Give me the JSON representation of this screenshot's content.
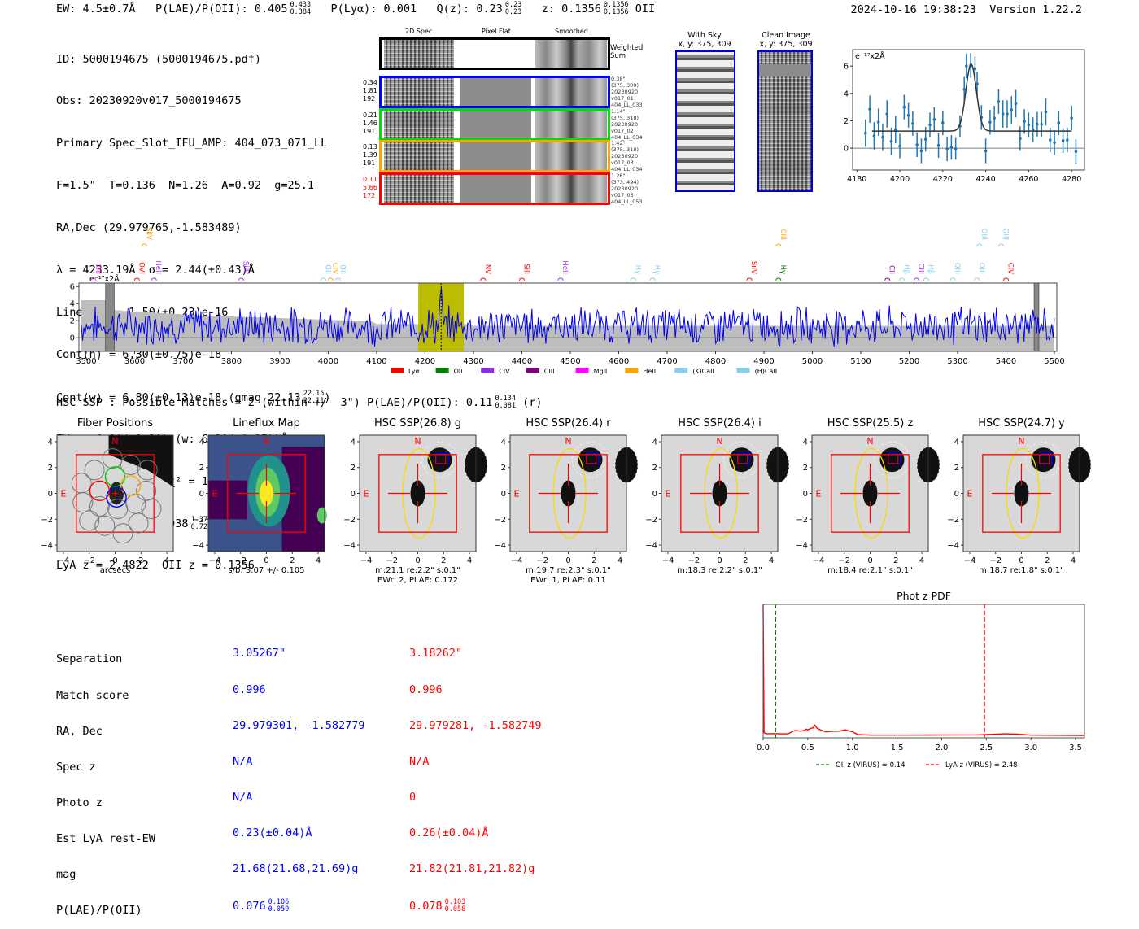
{
  "header": {
    "ew": "EW: 4.5±0.7Å",
    "plae_label": "P(LAE)/P(OII): 0.405",
    "plae_hi": "0.433",
    "plae_lo": "0.384",
    "plya": "P(Lyα): 0.001",
    "qz_label": "Q(z): 0.23",
    "qz_hi": "0.23",
    "qz_lo": "0.23",
    "z_label": "z: 0.1356",
    "z_hi": "0.1356",
    "z_lo": "0.1356",
    "z_line": "OII",
    "timestamp": "2024-10-16 19:38:23",
    "version": "Version 1.22.2"
  },
  "info": {
    "lines": [
      "ID: 5000194675 (5000194675.pdf)",
      "Obs: 20230920v017_5000194675",
      "Primary Spec_Slot_IFU_AMP: 404_073_071_LL",
      "F=1.5\"  T=0.136  N=1.26  A=0.92  g=25.1",
      "RA,Dec (29.979765,-1.583489)",
      "λ = 4233.19Å  σ = 2.44(±0.43)Å",
      "LineFlux = 1.50(±0.23)e-16",
      "Cont(n) = 6.30(±0.75)e-18"
    ],
    "contw": "Cont(w) = 6.80(±0.13)e-18 (gmag 22.13",
    "contw_hi": "22.15",
    "contw_lo": "22.11",
    "contw_end": ")",
    "ewr": "EWr = 6.80(±1.30) (w: 6.30(±0.95))Å",
    "sn": "S/N = 7.3(±0.4)  χ² = 1.0(±0.2)",
    "plae": "P(LAE)/P(OII): 0.938",
    "plae_hi": "1.373",
    "plae_lo": "0.729",
    "plae_w": "(w: 0.803",
    "plae_w_hi": "0.861",
    "plae_w_lo": "0.75",
    "plae_end": ")",
    "z": "LyA z = 2.4822  OII z = 0.1356"
  },
  "cutouts": {
    "col_labels": [
      "2D Spec",
      "Pixel Flat",
      "Smoothed"
    ],
    "weighted_sum": "Weighted Sum",
    "rows": [
      {
        "color": "#0000ff",
        "left": [
          "0.34",
          "1.81",
          "192"
        ],
        "left_color": "#000000",
        "right": [
          "0.38\"",
          "(375, 309)",
          "20230920",
          "v017_01",
          "404_LL_033"
        ]
      },
      {
        "color": "#00dd00",
        "left": [
          "0.21",
          "1.46",
          "191"
        ],
        "left_color": "#000000",
        "right": [
          "1.14\"",
          "(375, 318)",
          "20230920",
          "v017_02",
          "404_LL_034"
        ]
      },
      {
        "color": "#ffa500",
        "left": [
          "0.13",
          "1.39",
          "191"
        ],
        "left_color": "#000000",
        "right": [
          "1.42\"",
          "(375, 318)",
          "20230920",
          "v017_03",
          "404_LL_034"
        ]
      },
      {
        "color": "#ff0000",
        "left": [
          "0.11",
          "5.66",
          "172"
        ],
        "left_color": "#ff0000",
        "right": [
          "1.26\"",
          "(373, 494)",
          "20230920",
          "v017_03",
          "404_LL_053"
        ]
      }
    ]
  },
  "sky_images": [
    {
      "title": "With Sky",
      "coords": "x, y: 375, 309"
    },
    {
      "title": "Clean Image",
      "coords": "x, y: 375, 309"
    }
  ],
  "chart_data": [
    {
      "type": "scatter",
      "name": "line-fit-zoom",
      "ylabel_unit": "e⁻¹⁷x2Å",
      "xlim": [
        4178,
        4286
      ],
      "ylim": [
        -1.6,
        7.2
      ],
      "xticks": [
        4180,
        4200,
        4220,
        4240,
        4260,
        4280
      ],
      "yticks": [
        0,
        2,
        4,
        6
      ],
      "points": [
        [
          4184,
          1.1,
          1.0
        ],
        [
          4186,
          2.85,
          1.0
        ],
        [
          4188,
          0.9,
          1.0
        ],
        [
          4190,
          1.9,
          1.0
        ],
        [
          4192,
          0.8,
          1.0
        ],
        [
          4194,
          2.5,
          1.0
        ],
        [
          4196,
          0.5,
          1.0
        ],
        [
          4198,
          1.35,
          1.0
        ],
        [
          4200,
          0.15,
          0.9
        ],
        [
          4202,
          3.0,
          0.9
        ],
        [
          4204,
          2.4,
          0.9
        ],
        [
          4206,
          1.8,
          0.9
        ],
        [
          4208,
          0.25,
          0.9
        ],
        [
          4210,
          -0.2,
          0.9
        ],
        [
          4212,
          0.65,
          0.9
        ],
        [
          4214,
          1.7,
          0.9
        ],
        [
          4216,
          2.1,
          0.9
        ],
        [
          4218,
          0.2,
          0.9
        ],
        [
          4220,
          1.85,
          0.9
        ],
        [
          4222,
          -0.05,
          0.9
        ],
        [
          4224,
          0.05,
          0.9
        ],
        [
          4226,
          -0.05,
          0.8
        ],
        [
          4228,
          1.6,
          0.8
        ],
        [
          4230,
          4.3,
          0.9
        ],
        [
          4231,
          6.0,
          0.9
        ],
        [
          4233,
          6.05,
          0.9
        ],
        [
          4235,
          5.8,
          0.9
        ],
        [
          4236,
          4.7,
          0.9
        ],
        [
          4238,
          2.25,
          0.9
        ],
        [
          4240,
          -0.2,
          0.9
        ],
        [
          4242,
          1.9,
          0.9
        ],
        [
          4244,
          2.2,
          0.9
        ],
        [
          4246,
          3.4,
          0.9
        ],
        [
          4248,
          2.5,
          1.0
        ],
        [
          4250,
          2.5,
          1.0
        ],
        [
          4252,
          2.8,
          1.0
        ],
        [
          4254,
          3.25,
          1.0
        ],
        [
          4256,
          0.7,
          0.9
        ],
        [
          4258,
          1.95,
          0.9
        ],
        [
          4260,
          1.7,
          0.9
        ],
        [
          4262,
          1.35,
          0.9
        ],
        [
          4264,
          1.75,
          0.9
        ],
        [
          4266,
          1.75,
          0.9
        ],
        [
          4268,
          2.65,
          1.0
        ],
        [
          4270,
          0.6,
          0.9
        ],
        [
          4272,
          0.4,
          0.9
        ],
        [
          4274,
          1.85,
          0.9
        ],
        [
          4276,
          0.55,
          0.9
        ],
        [
          4278,
          0.6,
          0.9
        ],
        [
          4280,
          2.2,
          0.9
        ],
        [
          4282,
          -0.25,
          0.9
        ]
      ],
      "fit": {
        "continuum": 1.25,
        "center": 4233.19,
        "sigma": 2.44,
        "peak": 4.9,
        "xrange": [
          4187,
          4280
        ]
      }
    },
    {
      "type": "line",
      "name": "full-spectrum",
      "ylabel_unit": "e⁻¹⁷x2Å",
      "xlim": [
        3485,
        5505
      ],
      "ylim": [
        -1.6,
        6.4
      ],
      "xticks": [
        3500,
        3600,
        3700,
        3800,
        3900,
        4000,
        4100,
        4200,
        4300,
        4400,
        4500,
        4600,
        4700,
        4800,
        4900,
        5000,
        5100,
        5200,
        5300,
        5400,
        5500
      ],
      "yticks": [
        0,
        2,
        4,
        6
      ],
      "highlight": [
        4186,
        4280
      ],
      "line_marker": 4233.19,
      "masked": [
        [
          3540,
          3558
        ],
        [
          5458,
          5468
        ]
      ],
      "emission_lines": [
        {
          "name": "CIII",
          "wave": 3515,
          "color": "#ff33ff",
          "row": 1
        },
        {
          "name": "SiIV",
          "wave": 3620,
          "color": "#ffa500",
          "row": 0
        },
        {
          "name": "OVI",
          "wave": 3605,
          "color": "#ff0000",
          "row": 1
        },
        {
          "name": "HeII",
          "wave": 3640,
          "color": "#9b30ff",
          "row": 1
        },
        {
          "name": "SiIV",
          "wave": 3820,
          "color": "#9b30ff",
          "row": 1
        },
        {
          "name": "OII",
          "wave": 3990,
          "color": "#87ceeb",
          "row": 1
        },
        {
          "name": "CIV",
          "wave": 4005,
          "color": "#ffa500",
          "row": 1
        },
        {
          "name": "OII",
          "wave": 4020,
          "color": "#87ceeb",
          "row": 1
        },
        {
          "name": "NV",
          "wave": 4320,
          "color": "#ff0000",
          "row": 1
        },
        {
          "name": "SiII",
          "wave": 4400,
          "color": "#ff0000",
          "row": 1
        },
        {
          "name": "HeII",
          "wave": 4480,
          "color": "#9b30ff",
          "row": 1
        },
        {
          "name": "Hγ",
          "wave": 4630,
          "color": "#87ceeb",
          "row": 1
        },
        {
          "name": "Hγ",
          "wave": 4670,
          "color": "#87ceeb",
          "row": 1
        },
        {
          "name": "SiIV",
          "wave": 4870,
          "color": "#ff0000",
          "row": 1
        },
        {
          "name": "CIII",
          "wave": 4930,
          "color": "#ffa500",
          "row": 0
        },
        {
          "name": "Hγ",
          "wave": 4930,
          "color": "#008000",
          "row": 1
        },
        {
          "name": "CII",
          "wave": 5155,
          "color": "#8b008b",
          "row": 1
        },
        {
          "name": "Hβ",
          "wave": 5185,
          "color": "#87ceeb",
          "row": 1
        },
        {
          "name": "CIII",
          "wave": 5215,
          "color": "#9b30ff",
          "row": 1
        },
        {
          "name": "Hβ",
          "wave": 5235,
          "color": "#87ceeb",
          "row": 1
        },
        {
          "name": "OIII",
          "wave": 5290,
          "color": "#87ceeb",
          "row": 1
        },
        {
          "name": "OIII",
          "wave": 5340,
          "color": "#87ceeb",
          "row": 1
        },
        {
          "name": "OIII",
          "wave": 5345,
          "color": "#87ceeb",
          "row": 0
        },
        {
          "name": "OIII",
          "wave": 5390,
          "color": "#87ceeb",
          "row": 0
        },
        {
          "name": "CIV",
          "wave": 5400,
          "color": "#ff0000",
          "row": 1
        }
      ],
      "legend": [
        {
          "label": "Lyα",
          "color": "#ff0000"
        },
        {
          "label": "OII",
          "color": "#008000"
        },
        {
          "label": "CIV",
          "color": "#8a2be2"
        },
        {
          "label": "CIII",
          "color": "#800080"
        },
        {
          "label": "MgII",
          "color": "#ff00ff"
        },
        {
          "label": "HeII",
          "color": "#ffa500"
        },
        {
          "label": "(K)CaII",
          "color": "#87ceeb"
        },
        {
          "label": "(H)CaII",
          "color": "#87ceeb"
        }
      ],
      "legend_position": "bottom-center"
    },
    {
      "type": "line",
      "name": "phot-z-pdf",
      "title": "Phot z PDF",
      "xlim": [
        0,
        3.6
      ],
      "xticks": [
        0.0,
        0.5,
        1.0,
        1.5,
        2.0,
        2.5,
        3.0,
        3.5
      ],
      "x": [
        0.0,
        0.01,
        0.02,
        0.05,
        0.1,
        0.2,
        0.28,
        0.32,
        0.36,
        0.42,
        0.46,
        0.48,
        0.5,
        0.53,
        0.56,
        0.58,
        0.6,
        0.64,
        0.7,
        0.8,
        0.85,
        0.92,
        1.0,
        1.06,
        1.2,
        1.5,
        2.0,
        2.4,
        2.7,
        2.85,
        3.0,
        3.6
      ],
      "y": [
        1.0,
        0.04,
        0.035,
        0.03,
        0.032,
        0.03,
        0.03,
        0.045,
        0.055,
        0.05,
        0.055,
        0.065,
        0.06,
        0.07,
        0.075,
        0.095,
        0.075,
        0.06,
        0.045,
        0.05,
        0.05,
        0.06,
        0.045,
        0.025,
        0.02,
        0.02,
        0.021,
        0.022,
        0.03,
        0.028,
        0.02,
        0.018
      ],
      "vlines": [
        {
          "x": 0.14,
          "color": "#008000",
          "label": "OII z (VIRUS) = 0.14"
        },
        {
          "x": 2.48,
          "color": "#ff0000",
          "label": "LyA z (VIRUS) = 2.48"
        }
      ],
      "legend_position": "bottom-center"
    }
  ],
  "hsc": {
    "header": "HSC-SSP : Possible Matches = 2 (within +/- 3\")  P(LAE)/P(OII): 0.11",
    "header_hi": "0.134",
    "header_lo": "0.081",
    "header_band": "(r)",
    "panels": [
      {
        "title": "Fiber Positions",
        "caption": "arcsecs",
        "caption2": "",
        "kind": "fiber"
      },
      {
        "title": "Lineflux Map",
        "caption": "s/b: 3.07 +/- 0.105",
        "caption2": "",
        "kind": "lineflux"
      },
      {
        "title": "HSC SSP(26.8) g",
        "caption": "m:21.1  re:2.2\"  s:0.1\"",
        "caption2": "EWr: 2, PLAE: 0.172",
        "kind": "hsc"
      },
      {
        "title": "HSC SSP(26.4) r",
        "caption": "m:19.7  re:2.3\"  s:0.1\"",
        "caption2": "EWr: 1, PLAE: 0.11",
        "kind": "hsc"
      },
      {
        "title": "HSC SSP(26.4) i",
        "caption": "m:18.3  re:2.2\"  s:0.1\"",
        "caption2": "",
        "kind": "hsc"
      },
      {
        "title": "HSC SSP(25.5) z",
        "caption": "m:18.4  re:2.1\"  s:0.1\"",
        "caption2": "",
        "kind": "hsc"
      },
      {
        "title": "HSC SSP(24.7) y",
        "caption": "m:18.7  re:1.8\"  s:0.1\"",
        "caption2": "",
        "kind": "hsc"
      }
    ],
    "ticks": [
      "−4",
      "−2",
      "0",
      "2",
      "4"
    ],
    "north": "N",
    "east": "E"
  },
  "matches": {
    "labels": [
      "Separation",
      "Match score",
      "RA, Dec",
      "Spec z",
      "Photo z",
      "Est LyA rest-EW",
      "mag",
      "P(LAE)/P(OII)"
    ],
    "blue": {
      "color": "#0000ff",
      "values": [
        "3.05267\"",
        "0.996",
        "29.979301, -1.582779",
        "N/A",
        "N/A",
        "0.23(±0.04)Å",
        "21.68(21.68,21.69)g"
      ],
      "plae": "0.076",
      "plae_hi": "0.106",
      "plae_lo": "0.059"
    },
    "red": {
      "color": "#ff0000",
      "values": [
        "3.18262\"",
        "0.996",
        "29.979281, -1.582749",
        "N/A",
        "0",
        "0.26(±0.04)Å",
        "21.82(21.81,21.82)g"
      ],
      "plae": "0.078",
      "plae_hi": "0.103",
      "plae_lo": "0.058"
    }
  }
}
